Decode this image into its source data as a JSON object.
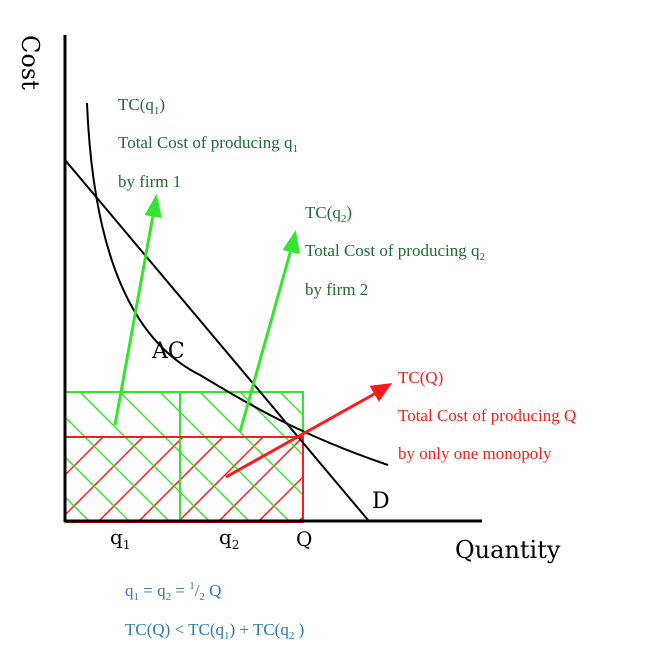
{
  "axes": {
    "y_label": "Cost",
    "x_label": "Quantity",
    "ticks": {
      "q1": "q",
      "q1_sub": "1",
      "q2": "q",
      "q2_sub": "2",
      "Q": "Q"
    }
  },
  "curves": {
    "ac_label": "AC",
    "demand_label": "D"
  },
  "annotations": {
    "tc_q1": {
      "title": "TC(q",
      "title_sub": "1",
      "title_end": ")",
      "line1": "Total Cost of producing q",
      "line1_sub": "1",
      "line2": "by firm 1"
    },
    "tc_q2": {
      "title": "TC(q",
      "title_sub": "2",
      "title_end": ")",
      "line1": "Total Cost of producing q",
      "line1_sub": "2",
      "line2": "by firm 2"
    },
    "tc_Q": {
      "title": "TC(Q)",
      "line1": "Total Cost of producing Q",
      "line2": "by only one monopoly"
    }
  },
  "equations": {
    "eq1": {
      "a": "q",
      "a_sub": "1",
      "mid": " = q",
      "b_sub": "2",
      "eq": " = ",
      "num": "1",
      "slash": "/",
      "den": "2",
      "end": " Q"
    },
    "eq2": {
      "start": "TC(Q) < TC(q",
      "s1": "1",
      "mid": ") + TC(q",
      "s2": "2",
      "end": " )"
    }
  },
  "colors": {
    "axis": "#000000",
    "green_hatch": "#33e52b",
    "green_text": "#1f6b33",
    "red": "#ff1a1a",
    "blue_text": "#2a78b8"
  }
}
